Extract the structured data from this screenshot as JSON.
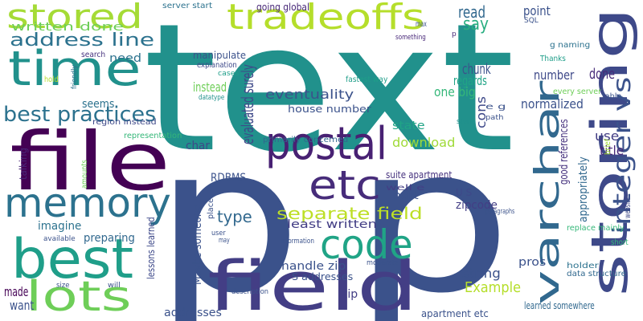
{
  "words": [
    {
      "text": "p",
      "color": "#3b528b"
    },
    {
      "text": "text",
      "color": "#21918c"
    },
    {
      "text": "p",
      "color": "#3b528b"
    },
    {
      "text": "file",
      "color": "#440154"
    },
    {
      "text": "storing",
      "color": "#3e4989"
    },
    {
      "text": "field",
      "color": "#433e85"
    },
    {
      "text": "best",
      "color": "#1f9e89"
    },
    {
      "text": "memory",
      "color": "#2c728e"
    },
    {
      "text": "time",
      "color": "#21918c"
    },
    {
      "text": "tradeoffs",
      "color": "#b5de2b"
    },
    {
      "text": "stored",
      "color": "#a5db36"
    },
    {
      "text": "code",
      "color": "#20a486"
    },
    {
      "text": "postal",
      "color": "#482173"
    },
    {
      "text": "etc",
      "color": "#472c7a"
    },
    {
      "text": "varchar",
      "color": "#31688e"
    },
    {
      "text": "lots",
      "color": "#6ece58"
    },
    {
      "text": "best practices",
      "color": "#2c728e"
    },
    {
      "text": "integer vs",
      "color": "#3b528b"
    },
    {
      "text": "address line",
      "color": "#2c728e"
    },
    {
      "text": "separate field",
      "color": "#bddf26"
    },
    {
      "text": "read",
      "color": "#31688e"
    },
    {
      "text": "say",
      "color": "#28ae80"
    },
    {
      "text": "written done",
      "color": "#6ece58"
    },
    {
      "text": "server start",
      "color": "#2c728e"
    },
    {
      "text": "going global",
      "color": "#482878"
    },
    {
      "text": "point",
      "color": "#3b528b"
    },
    {
      "text": "need",
      "color": "#2c728e"
    },
    {
      "text": "manipulate",
      "color": "#3b528b"
    },
    {
      "text": "search",
      "color": "#46327e"
    },
    {
      "text": "explanation",
      "color": "#3e4989"
    },
    {
      "text": "cases",
      "color": "#1f9e89"
    },
    {
      "text": "datatype",
      "color": "#21918c"
    },
    {
      "text": "friendly",
      "color": "#2c728e"
    },
    {
      "text": "hold",
      "color": "#b5de2b"
    },
    {
      "text": "evaluated surely",
      "color": "#3e4989"
    },
    {
      "text": "eventuality",
      "color": "#3b528b"
    },
    {
      "text": "one big",
      "color": "#35b779"
    },
    {
      "text": "chunk",
      "color": "#3b528b"
    },
    {
      "text": "regards",
      "color": "#20a486"
    },
    {
      "text": "number",
      "color": "#3e4989"
    },
    {
      "text": "done",
      "color": "#472c7a"
    },
    {
      "text": "normalized",
      "color": "#3b528b"
    },
    {
      "text": "instead",
      "color": "#6ece58"
    },
    {
      "text": "fastest way",
      "color": "#1f9e89"
    },
    {
      "text": "seems",
      "color": "#2c728e"
    },
    {
      "text": "house number",
      "color": "#3b528b"
    },
    {
      "text": "region instead",
      "color": "#3e4989"
    },
    {
      "text": "representation",
      "color": "#35b779"
    },
    {
      "text": "primarily concerned",
      "color": "#31688e"
    },
    {
      "text": "state",
      "color": "#20a486"
    },
    {
      "text": "cons",
      "color": "#3e4989"
    },
    {
      "text": "e g",
      "color": "#3b528b"
    },
    {
      "text": "download",
      "color": "#a0da39"
    },
    {
      "text": "char",
      "color": "#3e4989"
    },
    {
      "text": "talking",
      "color": "#482878"
    },
    {
      "text": "amounts",
      "color": "#6ece58"
    },
    {
      "text": "RDBMS",
      "color": "#3b528b"
    },
    {
      "text": "suite apartment",
      "color": "#46327e"
    },
    {
      "text": "well e",
      "color": "#433e85"
    },
    {
      "text": "good references",
      "color": "#46327e"
    },
    {
      "text": "use",
      "color": "#433e85"
    },
    {
      "text": "title",
      "color": "#482878"
    },
    {
      "text": "appropriately",
      "color": "#31688e"
    },
    {
      "text": "type",
      "color": "#31688e"
    },
    {
      "text": "imagine",
      "color": "#2c728e"
    },
    {
      "text": "part",
      "color": "#3b528b"
    },
    {
      "text": "U S",
      "color": "#3e4989"
    },
    {
      "text": "zipcode",
      "color": "#433e85"
    },
    {
      "text": "least written",
      "color": "#433e85"
    },
    {
      "text": "preparing",
      "color": "#31688e"
    },
    {
      "text": "lessons learned",
      "color": "#3e4989"
    },
    {
      "text": "Maybe someone",
      "color": "#3b528b"
    },
    {
      "text": "handle zip",
      "color": "#3b528b"
    },
    {
      "text": "S addresses",
      "color": "#3b528b"
    },
    {
      "text": "string",
      "color": "#3b528b"
    },
    {
      "text": "Example",
      "color": "#b5de2b"
    },
    {
      "text": "pros",
      "color": "#3b528b"
    },
    {
      "text": "zip",
      "color": "#433e85"
    },
    {
      "text": "made",
      "color": "#440154"
    },
    {
      "text": "want",
      "color": "#3b528b"
    },
    {
      "text": "addresses",
      "color": "#3b528b"
    },
    {
      "text": "apartment etc",
      "color": "#3b528b"
    },
    {
      "text": "learned somewhere",
      "color": "#31688e"
    },
    {
      "text": "data structure",
      "color": "#31688e"
    },
    {
      "text": "holder",
      "color": "#2c728e"
    },
    {
      "text": "replace mainly",
      "color": "#35b779"
    },
    {
      "text": "short",
      "color": "#35b779"
    },
    {
      "text": "brief",
      "color": "#a0da39"
    },
    {
      "text": "website",
      "color": "#3e4989"
    },
    {
      "text": "every server",
      "color": "#6ece58"
    },
    {
      "text": "table",
      "color": "#3b528b"
    },
    {
      "text": "Thanks",
      "color": "#1f9e89"
    },
    {
      "text": "g naming",
      "color": "#2c728e"
    },
    {
      "text": "max",
      "color": "#3b528b"
    },
    {
      "text": "something",
      "color": "#482878"
    },
    {
      "text": "SQL",
      "color": "#3b528b"
    },
    {
      "text": "p",
      "color": "#482878"
    },
    {
      "text": "path",
      "color": "#3b528b"
    },
    {
      "text": "store",
      "color": "#21918c"
    },
    {
      "text": "paragraphs",
      "color": "#3b528b"
    },
    {
      "text": "information",
      "color": "#3b528b"
    },
    {
      "text": "moderate",
      "color": "#3b528b"
    },
    {
      "text": "description",
      "color": "#3b528b"
    },
    {
      "text": "place",
      "color": "#3b528b"
    },
    {
      "text": "user",
      "color": "#3b528b"
    },
    {
      "text": "may",
      "color": "#3b528b"
    },
    {
      "text": "will",
      "color": "#3b528b"
    },
    {
      "text": "size",
      "color": "#3b528b"
    },
    {
      "text": "available",
      "color": "#3b528b"
    }
  ]
}
